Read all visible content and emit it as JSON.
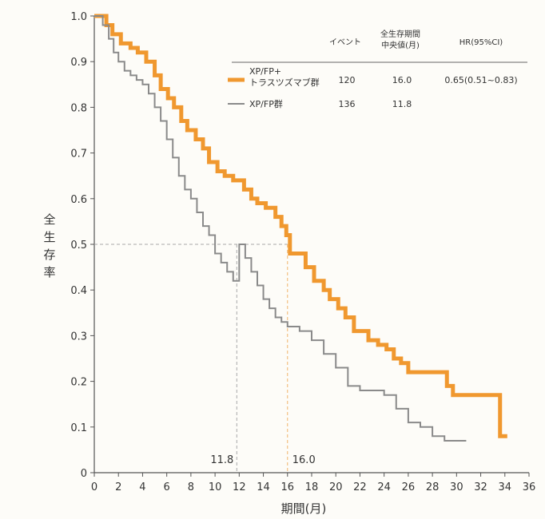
{
  "chart_data": {
    "type": "line",
    "xlabel": "期間(月)",
    "ylabel": "全生存率",
    "xlim": [
      0,
      36
    ],
    "ylim": [
      0,
      1.0
    ],
    "x_ticks": [
      "0",
      "2",
      "4",
      "6",
      "8",
      "10",
      "12",
      "14",
      "16",
      "18",
      "20",
      "22",
      "24",
      "26",
      "28",
      "30",
      "32",
      "34",
      "36"
    ],
    "y_ticks": [
      "0",
      "0.1",
      "0.2",
      "0.3",
      "0.4",
      "0.5",
      "0.6",
      "0.7",
      "0.8",
      "0.9",
      "1.0"
    ],
    "grid": false,
    "legend": {
      "position": "top-right",
      "headers": [
        "イベント",
        "全生存期間\n中央値(月)",
        "HR(95%CI)"
      ],
      "rows": [
        {
          "label": "XP/FP+\nトラスツズマブ群",
          "events": "120",
          "median": "16.0",
          "hr": "0.65(0.51~0.83)",
          "color": "#f0982f"
        },
        {
          "label": "XP/FP群",
          "events": "136",
          "median": "11.8",
          "hr": "",
          "color": "#8a8a8a"
        }
      ]
    },
    "reference_lines": {
      "y": 0.5,
      "x": [
        11.8,
        16.0
      ],
      "labels": [
        "11.8",
        "16.0"
      ]
    },
    "series": [
      {
        "name": "XP/FP+トラスツズマブ群",
        "color": "#f0982f",
        "x": [
          0,
          1.0,
          1.5,
          2.2,
          3.0,
          3.6,
          4.3,
          5.0,
          5.5,
          6.1,
          6.6,
          7.2,
          7.7,
          8.4,
          9.0,
          9.5,
          10.2,
          10.8,
          11.5,
          12.4,
          13.0,
          13.5,
          14.2,
          15.0,
          15.5,
          15.9,
          16.2,
          16.8,
          17.5,
          18.2,
          19.0,
          19.5,
          20.2,
          20.8,
          21.5,
          22.0,
          22.7,
          23.5,
          24.2,
          24.8,
          25.4,
          26.0,
          28.5,
          29.2,
          29.7,
          30.2,
          33.6,
          34.2
        ],
        "y": [
          1.0,
          0.98,
          0.96,
          0.94,
          0.93,
          0.92,
          0.9,
          0.87,
          0.84,
          0.82,
          0.8,
          0.77,
          0.75,
          0.73,
          0.71,
          0.68,
          0.66,
          0.65,
          0.64,
          0.62,
          0.6,
          0.59,
          0.58,
          0.56,
          0.54,
          0.52,
          0.48,
          0.48,
          0.45,
          0.42,
          0.4,
          0.38,
          0.36,
          0.34,
          0.31,
          0.31,
          0.29,
          0.28,
          0.27,
          0.25,
          0.24,
          0.22,
          0.22,
          0.19,
          0.17,
          0.17,
          0.08,
          0.08
        ]
      },
      {
        "name": "XP/FP群",
        "color": "#8a8a8a",
        "x": [
          0,
          0.7,
          1.2,
          1.6,
          2.0,
          2.5,
          3.0,
          3.5,
          4.0,
          4.5,
          5.0,
          5.5,
          6.0,
          6.5,
          7.0,
          7.5,
          8.0,
          8.5,
          9.0,
          9.5,
          10.0,
          10.5,
          11.0,
          11.5,
          12.0,
          12.5,
          13.0,
          13.5,
          14.0,
          14.5,
          15.0,
          15.5,
          16.0,
          17.0,
          18.0,
          19.0,
          20.0,
          21.0,
          22.0,
          23.0,
          24.0,
          25.0,
          26.0,
          27.0,
          28.0,
          29.0,
          30.8
        ],
        "y": [
          1.0,
          0.98,
          0.95,
          0.92,
          0.9,
          0.88,
          0.87,
          0.86,
          0.85,
          0.83,
          0.8,
          0.77,
          0.73,
          0.69,
          0.65,
          0.62,
          0.6,
          0.57,
          0.54,
          0.52,
          0.48,
          0.46,
          0.44,
          0.42,
          0.5,
          0.47,
          0.44,
          0.41,
          0.38,
          0.36,
          0.34,
          0.33,
          0.32,
          0.31,
          0.29,
          0.26,
          0.23,
          0.19,
          0.18,
          0.18,
          0.17,
          0.14,
          0.11,
          0.1,
          0.08,
          0.07,
          0.07
        ]
      }
    ]
  }
}
